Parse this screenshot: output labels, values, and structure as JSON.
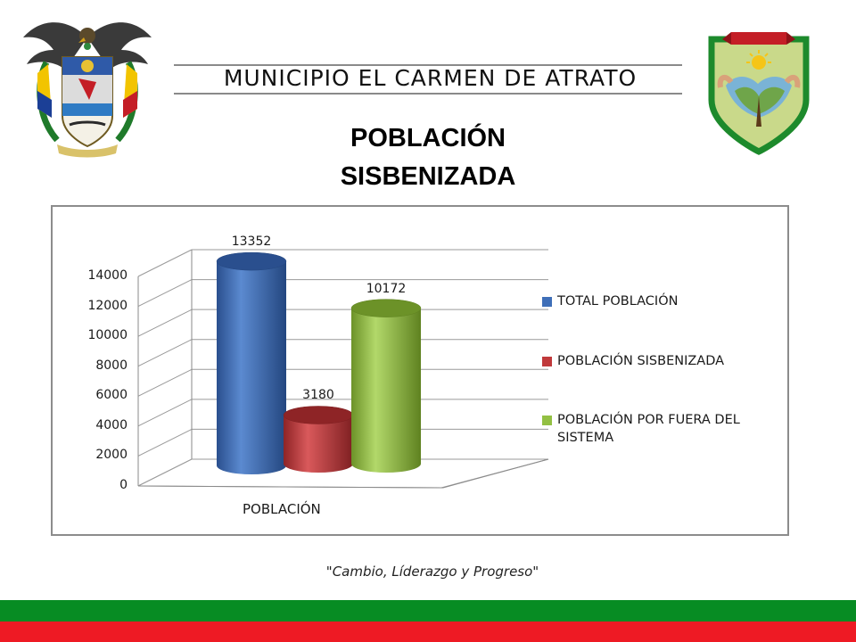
{
  "header": {
    "municipio": "MUNICIPIO EL CARMEN DE ATRATO",
    "title_line1": "POBLACIÓN",
    "title_line2": "SISBENIZADA"
  },
  "icons": {
    "left": "colombia-coat-of-arms-icon",
    "right": "municipal-shield-icon"
  },
  "chart_data": {
    "type": "bar",
    "categories": [
      "POBLACIÓN"
    ],
    "series": [
      {
        "name": "TOTAL POBLACIÓN",
        "values": [
          13352
        ],
        "color": "#3f6fb8",
        "label": "13352"
      },
      {
        "name": "POBLACIÓN SISBENIZADA",
        "values": [
          3180
        ],
        "color": "#c0393b",
        "label": "3180"
      },
      {
        "name": "POBLACIÓN POR FUERA DEL SISTEMA",
        "values": [
          10172
        ],
        "color": "#93c043",
        "label": "10172"
      }
    ],
    "ylim": [
      0,
      14000
    ],
    "yticks": [
      "0",
      "2000",
      "4000",
      "6000",
      "8000",
      "10000",
      "12000",
      "14000"
    ],
    "xlabel": "POBLACIÓN",
    "ylabel": "",
    "legend": {
      "items": [
        "TOTAL POBLACIÓN",
        "POBLACIÓN SISBENIZADA",
        "POBLACIÓN POR FUERA DEL SISTEMA"
      ],
      "item3_line1": "POBLACIÓN POR FUERA DEL",
      "item3_line2": "SISTEMA",
      "placement": "right"
    },
    "grid": true
  },
  "footer": {
    "slogan": "\"Cambio, Líderazgo y Progreso\"",
    "band_colors": [
      "#078c23",
      "#ee1a24"
    ]
  }
}
